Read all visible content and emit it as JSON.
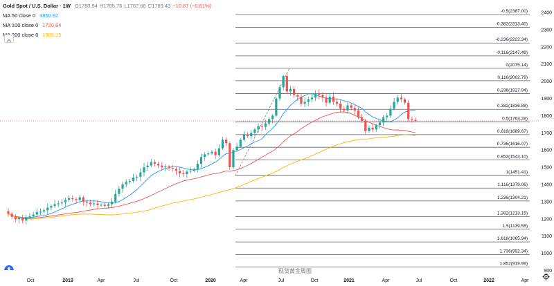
{
  "legend": {
    "symbol": "Gold Spot / U.S. Dollar · 1W",
    "open": "O1780.94",
    "high": "H1785.76",
    "low": "L1767.68",
    "close": "C1769.43",
    "change": "−10.87 (−0.61%)",
    "ma50_label": "MA 50 close 0",
    "ma50_value": "1850.92",
    "ma100_label": "MA 100 close 0",
    "ma100_value": "1720.64",
    "ma200_label": "MA 200 close 0",
    "ma200_value": "1505.15"
  },
  "watermark": "现货黄金周图",
  "colors": {
    "up": "#26a69a",
    "down": "#ef5350",
    "ma50": "#2196f3",
    "ma100": "#ef5350",
    "ma200": "#ffb300",
    "fib": "#787b86"
  },
  "chart_data": {
    "type": "line",
    "symbol": "XAUUSD",
    "interval": "1W",
    "x_tick_labels": [
      "Oct",
      "2019",
      "Apr",
      "Jul",
      "Oct",
      "2020",
      "Apr",
      "Jul",
      "Oct",
      "2021",
      "Apr",
      "Jul",
      "Oct",
      "2022",
      "Apr"
    ],
    "y_ticks": [
      900,
      1000,
      1100,
      1200,
      1300,
      1400,
      1500,
      1600,
      1700,
      1800,
      1900,
      2000,
      2100,
      2200,
      2300,
      2400
    ],
    "ylim": [
      860,
      2470
    ],
    "current_price": 1769.43,
    "fibonacci_levels": [
      {
        "ratio": "-0.5",
        "price": "2387.00"
      },
      {
        "ratio": "-0.382",
        "price": "2313.40"
      },
      {
        "ratio": "-0.236",
        "price": "2222.34"
      },
      {
        "ratio": "-0.116",
        "price": "2147.49"
      },
      {
        "ratio": "0",
        "price": "2075.14"
      },
      {
        "ratio": "0.116",
        "price": "2002.79"
      },
      {
        "ratio": "0.236",
        "price": "1927.94"
      },
      {
        "ratio": "0.382",
        "price": "1836.88"
      },
      {
        "ratio": "0.5",
        "price": "1763.28"
      },
      {
        "ratio": "0.618",
        "price": "1689.67"
      },
      {
        "ratio": "0.736",
        "price": "1616.07"
      },
      {
        "ratio": "0.853",
        "price": "1543.10"
      },
      {
        "ratio": "1",
        "price": "1451.41"
      },
      {
        "ratio": "1.116",
        "price": "1379.06"
      },
      {
        "ratio": "1.236",
        "price": "1304.21"
      },
      {
        "ratio": "1.382",
        "price": "1213.15"
      },
      {
        "ratio": "1.5",
        "price": "1139.55"
      },
      {
        "ratio": "1.618",
        "price": "1065.94"
      },
      {
        "ratio": "1.736",
        "price": "992.34"
      },
      {
        "ratio": "1.852",
        "price": "919.99"
      }
    ],
    "weekly_close_approx": [
      1230,
      1212,
      1198,
      1205,
      1190,
      1210,
      1215,
      1225,
      1240,
      1242,
      1250,
      1265,
      1275,
      1285,
      1290,
      1295,
      1310,
      1320,
      1315,
      1310,
      1325,
      1300,
      1295,
      1285,
      1290,
      1280,
      1282,
      1275,
      1285,
      1300,
      1345,
      1375,
      1400,
      1415,
      1420,
      1440,
      1445,
      1470,
      1500,
      1510,
      1530,
      1520,
      1510,
      1500,
      1505,
      1495,
      1490,
      1480,
      1465,
      1460,
      1475,
      1480,
      1490,
      1520,
      1560,
      1575,
      1580,
      1590,
      1570,
      1610,
      1660,
      1640,
      1500,
      1600,
      1620,
      1660,
      1690,
      1680,
      1700,
      1720,
      1740,
      1735,
      1755,
      1780,
      1800,
      1900,
      1965,
      2030,
      1940,
      1955,
      1920,
      1910,
      1870,
      1880,
      1895,
      1905,
      1930,
      1920,
      1905,
      1875,
      1910,
      1880,
      1870,
      1840,
      1830,
      1860,
      1845,
      1830,
      1790,
      1770,
      1710,
      1730,
      1720,
      1745,
      1760,
      1790,
      1800,
      1840,
      1880,
      1905,
      1895,
      1875,
      1780,
      1775,
      1769
    ],
    "ma_series": [
      {
        "name": "MA 50 close 0",
        "last": 1850.92
      },
      {
        "name": "MA 100 close 0",
        "last": 1720.64
      },
      {
        "name": "MA 200 close 0",
        "last": 1505.15
      }
    ]
  }
}
